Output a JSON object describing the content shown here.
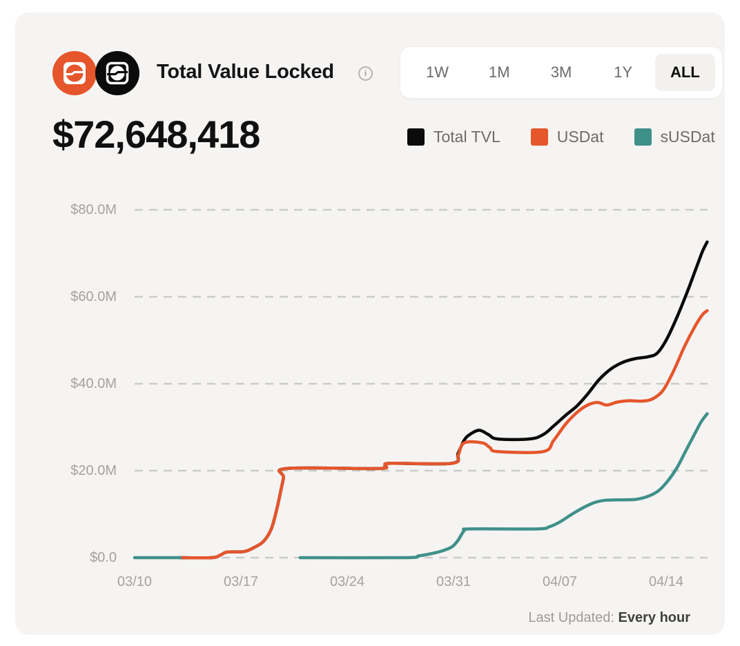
{
  "header": {
    "title": "Total Value Locked",
    "tvl_value": "$72,648,418"
  },
  "range_selector": {
    "options": [
      {
        "label": "1W",
        "active": false
      },
      {
        "label": "1M",
        "active": false
      },
      {
        "label": "3M",
        "active": false
      },
      {
        "label": "1Y",
        "active": false
      },
      {
        "label": "ALL",
        "active": true
      }
    ]
  },
  "legend": [
    {
      "label": "Total TVL",
      "color": "#0b0b0b"
    },
    {
      "label": "USDat",
      "color": "#e5562c"
    },
    {
      "label": "sUSDat",
      "color": "#40908a"
    }
  ],
  "footer": {
    "last_updated_label": "Last Updated:",
    "last_updated_value": "Every hour"
  },
  "colors": {
    "card_bg": "#f5f4f2",
    "gridline": "#cbcbc9",
    "axis_text": "#a3a2a0",
    "total_tvl": "#0b0b0b",
    "usdat": "#e5562c",
    "susdat": "#40908a"
  },
  "chart_data": {
    "type": "line",
    "title": "Total Value Locked",
    "unit": "USD millions",
    "grid": "dashed horizontal",
    "legend_position": "top-right",
    "x_axis": {
      "tick_labels": [
        "03/10",
        "03/17",
        "03/24",
        "03/31",
        "04/07",
        "04/14"
      ],
      "tick_days": [
        0,
        7,
        14,
        21,
        28,
        35
      ],
      "note": "days measured from 03/10"
    },
    "y_axis": {
      "tick_labels": [
        "$0.0",
        "$20.0M",
        "$40.0M",
        "$60.0M",
        "$80.0M"
      ],
      "tick_values": [
        0,
        20,
        40,
        60,
        80
      ],
      "range": [
        0,
        80
      ]
    },
    "series": [
      {
        "name": "Total TVL",
        "color": "#0b0b0b",
        "segments": [
          [
            [
              3.0,
              0
            ],
            [
              5.1,
              0
            ],
            [
              5.7,
              0.7
            ],
            [
              6.1,
              1.3
            ],
            [
              7.2,
              1.4
            ],
            [
              7.9,
              2.4
            ],
            [
              8.5,
              3.8
            ],
            [
              9.0,
              6.6
            ],
            [
              9.4,
              11.7
            ],
            [
              9.8,
              18.2
            ],
            [
              10.0,
              20.5
            ],
            [
              16.0,
              20.5
            ],
            [
              16.5,
              21.2
            ],
            [
              16.9,
              21.7
            ],
            [
              20.9,
              21.7
            ],
            [
              21.3,
              24.0
            ],
            [
              21.7,
              27.0
            ],
            [
              22.1,
              28.4
            ],
            [
              22.7,
              29.3
            ],
            [
              23.3,
              28.3
            ],
            [
              23.9,
              27.3
            ],
            [
              26.0,
              27.3
            ],
            [
              26.9,
              28.3
            ],
            [
              27.6,
              30.3
            ],
            [
              28.4,
              32.8
            ],
            [
              29.1,
              34.8
            ],
            [
              29.8,
              37.5
            ],
            [
              30.6,
              41.0
            ],
            [
              31.4,
              43.5
            ],
            [
              32.2,
              45.0
            ],
            [
              33.0,
              45.8
            ],
            [
              33.8,
              46.2
            ],
            [
              34.4,
              47.0
            ],
            [
              35.0,
              50.0
            ],
            [
              35.7,
              55.2
            ],
            [
              36.4,
              61.2
            ],
            [
              37.0,
              66.8
            ],
            [
              37.4,
              70.5
            ],
            [
              37.7,
              72.6
            ]
          ]
        ]
      },
      {
        "name": "USDat",
        "color": "#e5562c",
        "segments": [
          [
            [
              3.0,
              0
            ],
            [
              5.1,
              0
            ],
            [
              5.7,
              0.7
            ],
            [
              6.1,
              1.3
            ],
            [
              7.2,
              1.4
            ],
            [
              7.9,
              2.4
            ],
            [
              8.5,
              3.8
            ],
            [
              9.0,
              6.6
            ],
            [
              9.4,
              11.7
            ],
            [
              9.8,
              18.2
            ],
            [
              10.0,
              20.5
            ],
            [
              16.0,
              20.5
            ],
            [
              16.5,
              21.2
            ],
            [
              16.9,
              21.7
            ],
            [
              20.9,
              21.7
            ],
            [
              21.3,
              23.5
            ],
            [
              21.7,
              26.4
            ],
            [
              22.9,
              26.4
            ],
            [
              23.4,
              25.3
            ],
            [
              23.9,
              24.4
            ],
            [
              26.9,
              24.4
            ],
            [
              27.6,
              27.0
            ],
            [
              28.4,
              30.8
            ],
            [
              29.2,
              33.6
            ],
            [
              29.9,
              35.2
            ],
            [
              30.5,
              35.7
            ],
            [
              31.1,
              35.1
            ],
            [
              31.8,
              35.8
            ],
            [
              32.6,
              36.1
            ],
            [
              33.4,
              36.0
            ],
            [
              34.1,
              36.5
            ],
            [
              34.8,
              38.5
            ],
            [
              35.5,
              43.0
            ],
            [
              36.2,
              48.5
            ],
            [
              36.9,
              53.2
            ],
            [
              37.4,
              55.9
            ],
            [
              37.7,
              56.8
            ]
          ]
        ]
      },
      {
        "name": "sUSDat",
        "color": "#40908a",
        "segments": [
          [
            [
              0,
              0
            ],
            [
              3.0,
              0
            ]
          ],
          [
            [
              10.9,
              0
            ],
            [
              17.8,
              0
            ],
            [
              18.7,
              0.4
            ],
            [
              19.5,
              0.9
            ],
            [
              20.3,
              1.6
            ],
            [
              20.9,
              2.5
            ],
            [
              21.3,
              4.0
            ],
            [
              21.7,
              6.2
            ],
            [
              22.1,
              6.6
            ],
            [
              26.5,
              6.6
            ],
            [
              27.3,
              7.1
            ],
            [
              28.0,
              8.2
            ],
            [
              28.8,
              10.0
            ],
            [
              29.6,
              11.6
            ],
            [
              30.3,
              12.7
            ],
            [
              31.0,
              13.2
            ],
            [
              32.0,
              13.3
            ],
            [
              33.0,
              13.4
            ],
            [
              33.8,
              14.1
            ],
            [
              34.5,
              15.4
            ],
            [
              35.1,
              17.6
            ],
            [
              35.7,
              20.6
            ],
            [
              36.3,
              24.6
            ],
            [
              36.9,
              28.6
            ],
            [
              37.3,
              31.2
            ],
            [
              37.7,
              33.1
            ]
          ]
        ]
      }
    ]
  }
}
